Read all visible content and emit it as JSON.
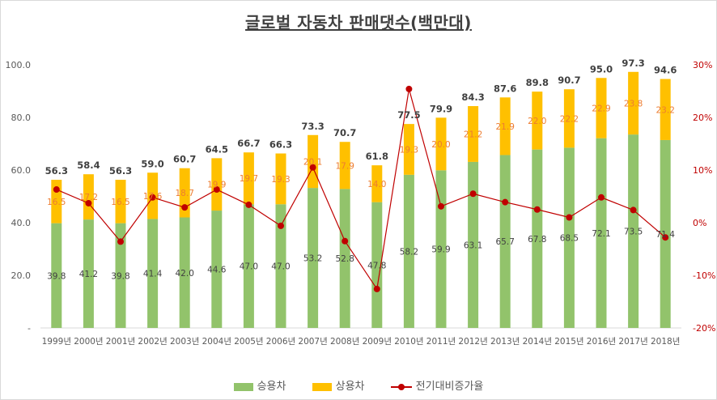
{
  "chart_data": {
    "type": "bar",
    "title": "글로벌 자동차 판매댓수(백만대)",
    "categories": [
      "1999년",
      "2000년",
      "2001년",
      "2002년",
      "2003년",
      "2004년",
      "2005년",
      "2006년",
      "2007년",
      "2008년",
      "2009년",
      "2010년",
      "2011년",
      "2012년",
      "2013년",
      "2014년",
      "2015년",
      "2016년",
      "2017년",
      "2018년"
    ],
    "stacked": true,
    "series": [
      {
        "name": "승용차",
        "kind": "bar",
        "axis": "left",
        "color": "#92c36b",
        "values": [
          39.8,
          41.2,
          39.8,
          41.4,
          42.0,
          44.6,
          47.0,
          47.0,
          53.2,
          52.8,
          47.8,
          58.2,
          59.9,
          63.1,
          65.7,
          67.8,
          68.5,
          72.1,
          73.5,
          71.4
        ],
        "labels": [
          "39.8",
          "41.2",
          "39.8",
          "41.4",
          "42.0",
          "44.6",
          "47.0",
          "47.0",
          "53.2",
          "52.8",
          "47.8",
          "58.2",
          "59.9",
          "63.1",
          "65.7",
          "67.8",
          "68.5",
          "72.1",
          "73.5",
          "71.4"
        ]
      },
      {
        "name": "상용차",
        "kind": "bar",
        "axis": "left",
        "color": "#ffc000",
        "values": [
          16.5,
          17.2,
          16.5,
          17.6,
          18.7,
          19.9,
          19.7,
          19.3,
          20.1,
          17.9,
          14.0,
          19.3,
          20.0,
          21.2,
          21.9,
          22.0,
          22.2,
          22.9,
          23.8,
          23.2
        ],
        "labels": [
          "16.5",
          "17.2",
          "16.5",
          "17.6",
          "18.7",
          "19.9",
          "19.7",
          "19.3",
          "20.1",
          "17.9",
          "14.0",
          "19.3",
          "20.0",
          "21.2",
          "21.9",
          "22.0",
          "22.2",
          "22.9",
          "23.8",
          "23.2"
        ]
      },
      {
        "name": "전기대비증가율",
        "kind": "line",
        "axis": "right",
        "color": "#c00000",
        "values": [
          6.3,
          3.7,
          -3.6,
          4.8,
          2.9,
          6.3,
          3.4,
          -0.6,
          10.5,
          -3.5,
          -12.6,
          25.4,
          3.1,
          5.5,
          3.9,
          2.5,
          1.0,
          4.8,
          2.4,
          -2.8
        ]
      }
    ],
    "totals": [
      "56.3",
      "58.4",
      "56.3",
      "59.0",
      "60.7",
      "64.5",
      "66.7",
      "66.3",
      "73.3",
      "70.7",
      "61.8",
      "77.5",
      "79.9",
      "84.3",
      "87.6",
      "89.8",
      "90.7",
      "95.0",
      "97.3",
      "94.6"
    ],
    "y_left": {
      "min": 0,
      "max": 100,
      "ticks": [
        "-",
        "20.0",
        "40.0",
        "60.0",
        "80.0",
        "100.0"
      ]
    },
    "y_right": {
      "min": -20,
      "max": 30,
      "ticks": [
        "-20%",
        "-10%",
        "0%",
        "10%",
        "20%",
        "30%"
      ]
    },
    "grid": false,
    "legend": "bottom"
  }
}
